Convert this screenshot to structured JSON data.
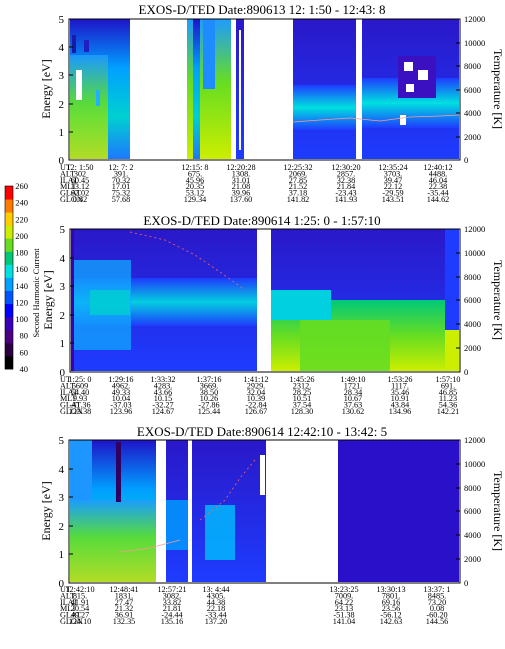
{
  "colorbar": {
    "label": "Second Harmonic Current",
    "ticks": [
      "40",
      "60",
      "80",
      "100",
      "120",
      "140",
      "160",
      "180",
      "200",
      "220",
      "240",
      "260"
    ],
    "colors": [
      "#000000",
      "#2a0040",
      "#4b0082",
      "#3a00b8",
      "#0000ff",
      "#0055ff",
      "#00a0ff",
      "#00e0e0",
      "#00c878",
      "#66dd22",
      "#ccee00",
      "#ffcc00",
      "#ff7a00",
      "#ff0000"
    ]
  },
  "chart_data": [
    {
      "type": "heatmap",
      "title": "EXOS-D/TED   Date:890613  12: 1:50 - 12:43: 8",
      "ylabel": "Energy [eV]",
      "y2label": "Temperature [K]",
      "ylim": [
        0,
        5
      ],
      "y2lim": [
        0,
        12000
      ],
      "yticks": [
        "0",
        "1",
        "2",
        "3",
        "4",
        "5"
      ],
      "y2ticks": [
        "0",
        "2000",
        "4000",
        "6000",
        "8000",
        "10000",
        "12000"
      ],
      "orbit_table": {
        "rows": [
          {
            "label": "UT",
            "values": [
              "12: 1:50",
              "12: 7: 2",
              "12:15: 8",
              "12:20:28",
              "12:25:32",
              "12:30:20",
              "12:35:24",
              "12:40:12"
            ]
          },
          {
            "label": "ALT",
            "values": [
              "302",
              "391.",
              "675.",
              "1308.",
              "2069.",
              "2857.",
              "3703.",
              "4488."
            ]
          },
          {
            "label": "ILAT",
            "values": [
              "60.45",
              "70.32",
              "45.96",
              "31.01",
              "27.85",
              "32.38",
              "39.47",
              "46.04"
            ]
          },
          {
            "label": "MLT",
            "values": [
              "13.12",
              "17.01",
              "20.35",
              "21.08",
              "21.52",
              "21.84",
              "22.12",
              "22.38"
            ]
          },
          {
            "label": "GLAT",
            "values": [
              "62.02",
              "75.32",
              "53.12",
              "39.96",
              "37.18",
              "-23.43",
              "-29.59",
              "-35.44"
            ]
          },
          {
            "label": "GLON",
            "values": [
              "0.82",
              "57.68",
              "129.34",
              "137.60",
              "141.82",
              "141.93",
              "143.51",
              "144.62"
            ]
          }
        ]
      }
    },
    {
      "type": "heatmap",
      "title": "EXOS-D/TED   Date:890614  1:25: 0 - 1:57:10",
      "ylabel": "Energy [eV]",
      "y2label": "Temperature [K]",
      "ylim": [
        0,
        5
      ],
      "y2lim": [
        0,
        12000
      ],
      "yticks": [
        "0",
        "1",
        "2",
        "3",
        "4",
        "5"
      ],
      "y2ticks": [
        "0",
        "2000",
        "4000",
        "6000",
        "8000",
        "10000",
        "12000"
      ],
      "orbit_table": {
        "rows": [
          {
            "label": "UT",
            "values": [
              "1:25: 0",
              "1:29:16",
              "1:33:32",
              "1:37:16",
              "1:41:12",
              "1:45:26",
              "1:49:10",
              "1:53:26",
              "1:57:10"
            ]
          },
          {
            "label": "ALT",
            "values": [
              "5609",
              "4962.",
              "4283.",
              "3669.",
              "2929.",
              "2312.",
              "1721.",
              "1117.",
              "691."
            ]
          },
          {
            "label": "ILAT",
            "values": [
              "54.40",
              "49.33",
              "43.66",
              "38.50",
              "32.04",
              "28.25",
              "28.34",
              "35.46",
              "46.85"
            ]
          },
          {
            "label": "MLT",
            "values": [
              "9.93",
              "10.04",
              "10.15",
              "10.26",
              "10.39",
              "10.51",
              "10.67",
              "10.91",
              "11.23"
            ]
          },
          {
            "label": "GLAT",
            "values": [
              "-41.36",
              "-37.03",
              "-32.27",
              "-27.86",
              "-22.84",
              "37.54",
              "37.63",
              "43.84",
              "54.36"
            ]
          },
          {
            "label": "GLON",
            "values": [
              "123.38",
              "123.96",
              "124.67",
              "125.44",
              "126.67",
              "128.30",
              "130.62",
              "134.96",
              "142.21"
            ]
          }
        ]
      }
    },
    {
      "type": "heatmap",
      "title": "EXOS-D/TED   Date:890614  12:42:10 - 13:42: 5",
      "ylabel": "Energy [eV]",
      "y2label": "Temperature [K]",
      "ylim": [
        0,
        5
      ],
      "y2lim": [
        0,
        12000
      ],
      "yticks": [
        "0",
        "1",
        "2",
        "3",
        "4",
        "5"
      ],
      "y2ticks": [
        "0",
        "2000",
        "4000",
        "6000",
        "8000",
        "10000",
        "12000"
      ],
      "orbit_table": {
        "rows": [
          {
            "label": "UT",
            "values": [
              "12:42:10",
              "12:48:41",
              "12:57:21",
              "13: 4:44",
              "13:23:25",
              "13:30:13",
              "13:37: 1"
            ]
          },
          {
            "label": "ALT",
            "values": [
              "815.",
              "1831.",
              "3082.",
              "4305.",
              "7009.",
              "7801.",
              "8485."
            ]
          },
          {
            "label": "ILAT",
            "values": [
              "41.91",
              "27.47",
              "33.82",
              "44.38",
              "64.22",
              "69.16",
              "73.20"
            ]
          },
          {
            "label": "MLT",
            "values": [
              "20.54",
              "21.32",
              "21.81",
              "22.18",
              "23.13",
              "23.56",
              "0.08"
            ]
          },
          {
            "label": "GLAT",
            "values": [
              "49.27",
              "36.91",
              "-24.44",
              "-33.44",
              "-51.38",
              "-56.12",
              "-60.20"
            ]
          },
          {
            "label": "GLON",
            "values": [
              "124.10",
              "132.35",
              "135.16",
              "137.20",
              "141.04",
              "142.63",
              "144.56"
            ]
          }
        ]
      }
    }
  ]
}
